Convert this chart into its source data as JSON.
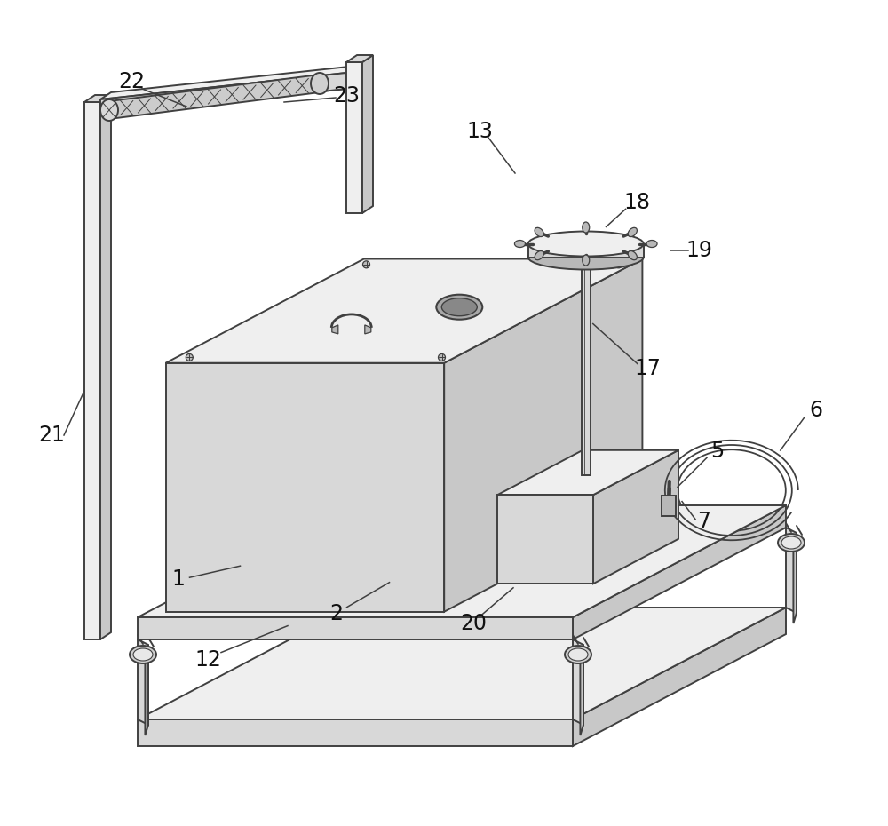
{
  "bg_color": "#ffffff",
  "lc": "#404040",
  "lw": 1.4,
  "label_fs": 17,
  "label_color": "#111111",
  "fills": {
    "top": "#efefef",
    "front": "#d8d8d8",
    "right": "#c8c8c8",
    "dark": "#b8b8b8",
    "wheel": "#d0d0d0"
  }
}
